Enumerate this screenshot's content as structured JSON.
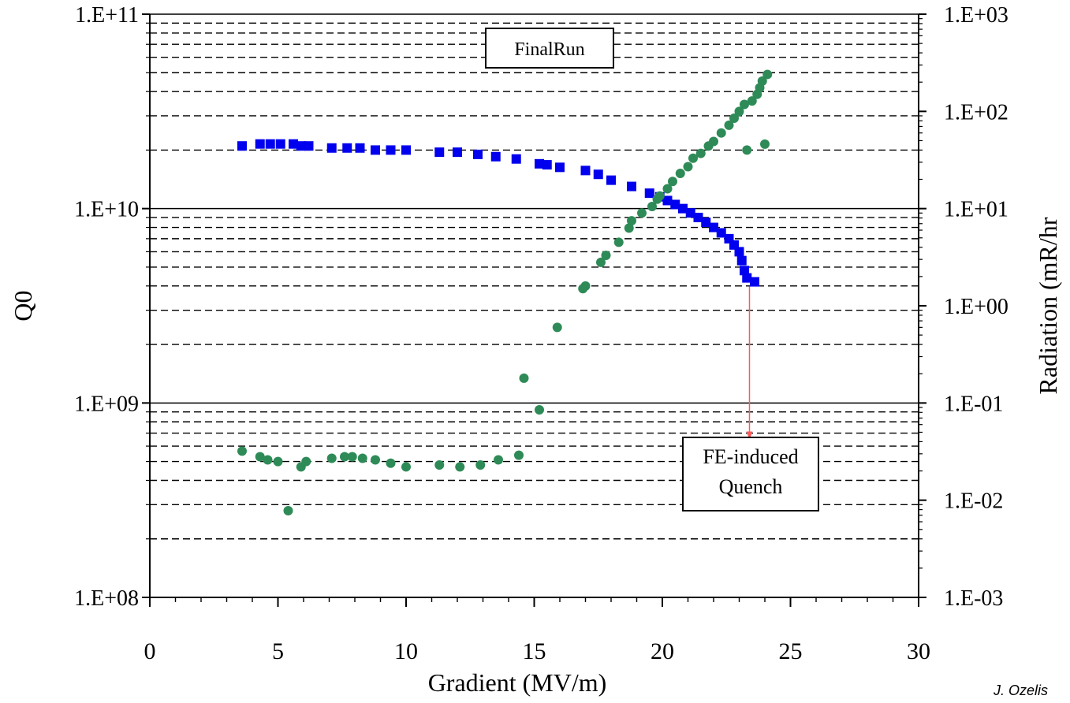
{
  "chart_data": {
    "type": "scatter",
    "xlabel": "Gradient (MV/m)",
    "ylabel_left": "Q0",
    "ylabel_right": "Radiation (mR/hr",
    "x_ticks": [
      0,
      5,
      10,
      15,
      20,
      25,
      30
    ],
    "x_tick_labels": [
      "0",
      "5",
      "10",
      "15",
      "20",
      "25",
      "30"
    ],
    "xlim": [
      0,
      30
    ],
    "y_left": {
      "scale": "log",
      "lim": [
        100000000.0,
        100000000000.0
      ],
      "ticks": [
        100000000000.0,
        10000000000.0,
        1000000000.0,
        100000000.0
      ],
      "tick_labels": [
        "1.E+11",
        "1.E+10",
        "1.E+09",
        "1.E+08"
      ]
    },
    "y_right": {
      "scale": "log",
      "lim": [
        0.001,
        1000
      ],
      "ticks": [
        1000,
        100,
        10,
        1,
        0.1,
        0.01,
        0.001
      ],
      "tick_labels": [
        "1.E+03",
        "1.E+02",
        "1.E+01",
        "1.E+00",
        "1.E-01",
        "1.E-02",
        "1.E-03"
      ]
    },
    "grid": "dashed minor, solid major",
    "series": [
      {
        "axis": "left",
        "color": "#0000ee",
        "marker": "square",
        "points": [
          [
            3.6,
            21000000000.0
          ],
          [
            4.3,
            21500000000.0
          ],
          [
            4.7,
            21500000000.0
          ],
          [
            5.1,
            21500000000.0
          ],
          [
            5.6,
            21500000000.0
          ],
          [
            5.9,
            21000000000.0
          ],
          [
            6.2,
            21000000000.0
          ],
          [
            7.1,
            20500000000.0
          ],
          [
            7.7,
            20500000000.0
          ],
          [
            8.2,
            20500000000.0
          ],
          [
            8.8,
            20000000000.0
          ],
          [
            9.4,
            20000000000.0
          ],
          [
            10.0,
            20000000000.0
          ],
          [
            11.3,
            19500000000.0
          ],
          [
            12.0,
            19500000000.0
          ],
          [
            12.8,
            19000000000.0
          ],
          [
            13.5,
            18500000000.0
          ],
          [
            14.3,
            18000000000.0
          ],
          [
            15.2,
            17000000000.0
          ],
          [
            15.5,
            16800000000.0
          ],
          [
            16.0,
            16300000000.0
          ],
          [
            17.0,
            15700000000.0
          ],
          [
            17.5,
            15000000000.0
          ],
          [
            18.0,
            14000000000.0
          ],
          [
            18.8,
            13000000000.0
          ],
          [
            19.5,
            12000000000.0
          ],
          [
            19.9,
            11500000000.0
          ],
          [
            20.2,
            11000000000.0
          ],
          [
            20.5,
            10500000000.0
          ],
          [
            20.8,
            10000000000.0
          ],
          [
            21.1,
            9500000000.0
          ],
          [
            21.4,
            9000000000.0
          ],
          [
            21.7,
            8500000000.0
          ],
          [
            22.0,
            8000000000.0
          ],
          [
            22.3,
            7500000000.0
          ],
          [
            22.6,
            7000000000.0
          ],
          [
            22.8,
            6500000000.0
          ],
          [
            23.0,
            6000000000.0
          ],
          [
            23.1,
            5400000000.0
          ],
          [
            23.2,
            4800000000.0
          ],
          [
            23.3,
            4400000000.0
          ],
          [
            23.6,
            4200000000.0
          ]
        ]
      },
      {
        "axis": "right",
        "color": "#2e8b57",
        "marker": "circle",
        "points": [
          [
            3.6,
            0.032
          ],
          [
            4.3,
            0.028
          ],
          [
            4.6,
            0.026
          ],
          [
            5.0,
            0.025
          ],
          [
            5.4,
            0.0078
          ],
          [
            5.9,
            0.022
          ],
          [
            6.1,
            0.025
          ],
          [
            7.1,
            0.027
          ],
          [
            7.6,
            0.028
          ],
          [
            7.9,
            0.028
          ],
          [
            8.3,
            0.027
          ],
          [
            8.8,
            0.026
          ],
          [
            9.4,
            0.024
          ],
          [
            10.0,
            0.022
          ],
          [
            11.3,
            0.023
          ],
          [
            12.1,
            0.022
          ],
          [
            12.9,
            0.023
          ],
          [
            13.6,
            0.026
          ],
          [
            14.4,
            0.029
          ],
          [
            14.6,
            0.18
          ],
          [
            15.2,
            0.085
          ],
          [
            15.9,
            0.6
          ],
          [
            16.9,
            1.5
          ],
          [
            17.0,
            1.6
          ],
          [
            17.6,
            2.8
          ],
          [
            17.8,
            3.3
          ],
          [
            18.3,
            4.5
          ],
          [
            18.7,
            6.3
          ],
          [
            18.8,
            7.5
          ],
          [
            19.2,
            9.0
          ],
          [
            19.6,
            10.5
          ],
          [
            19.8,
            12.5
          ],
          [
            19.9,
            13.5
          ],
          [
            20.2,
            16
          ],
          [
            20.4,
            19
          ],
          [
            20.7,
            23
          ],
          [
            21.0,
            27
          ],
          [
            21.2,
            33
          ],
          [
            21.5,
            37
          ],
          [
            21.8,
            44
          ],
          [
            22.0,
            49
          ],
          [
            22.3,
            60
          ],
          [
            22.6,
            72
          ],
          [
            22.8,
            85
          ],
          [
            23.0,
            100
          ],
          [
            23.2,
            118
          ],
          [
            23.3,
            40
          ],
          [
            23.5,
            128
          ],
          [
            23.7,
            150
          ],
          [
            23.8,
            175
          ],
          [
            23.9,
            205
          ],
          [
            24.0,
            46
          ],
          [
            24.1,
            240
          ]
        ]
      }
    ],
    "annotations": [
      {
        "text": "FinalRun"
      },
      {
        "lines": [
          "FE-induced",
          "Quench"
        ],
        "arrow_from": [
          23.4,
          4200000000.0
        ],
        "arrow_to": [
          23.4,
          650000000.0
        ]
      }
    ]
  },
  "credit": "J. Ozelis"
}
